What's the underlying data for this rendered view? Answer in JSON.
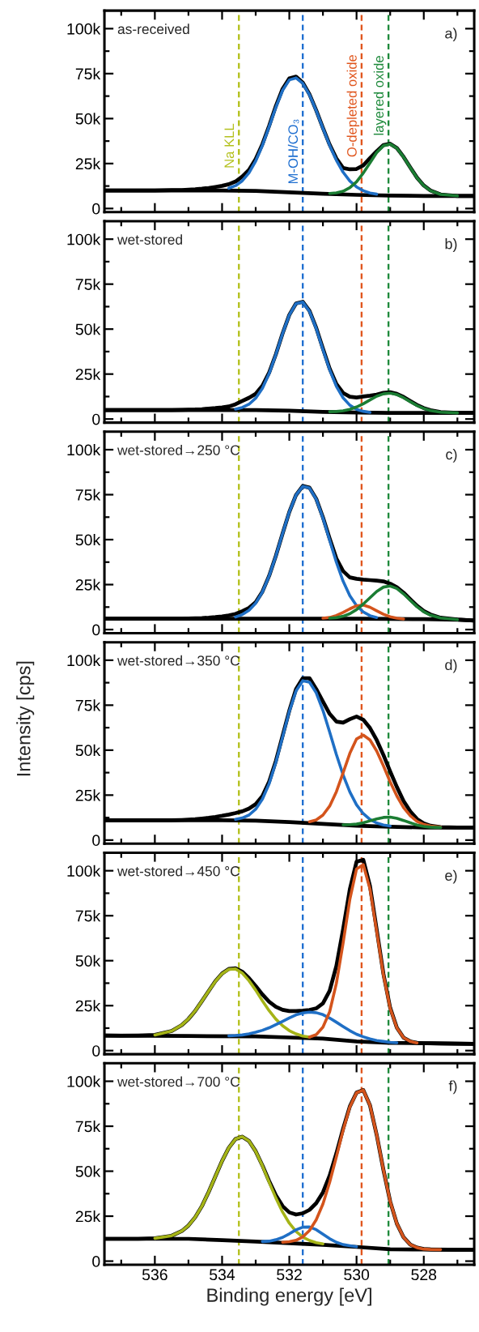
{
  "chart_data": [
    {
      "type": "line",
      "title": "as-received",
      "annotations": [
        "a)"
      ],
      "tick_labels": "y",
      "xlim": [
        537.5,
        526.5
      ],
      "ylim": [
        -2000,
        110000
      ],
      "xticks": [
        {
          "value": 537,
          "label": null
        },
        536,
        {
          "value": 535,
          "label": null
        },
        534,
        {
          "value": 533,
          "label": null
        },
        532,
        {
          "value": 531,
          "label": null
        },
        530,
        {
          "value": 529,
          "label": null
        },
        528,
        {
          "value": 527,
          "label": null
        }
      ],
      "yticks": [
        0,
        {
          "value": 12500,
          "label": null
        },
        {
          "value": 25000,
          "label": "25k"
        },
        {
          "value": 37500,
          "label": null
        },
        {
          "value": 50000,
          "label": "50k"
        },
        {
          "value": 62500,
          "label": null
        },
        {
          "value": 75000,
          "label": "75k"
        },
        {
          "value": 87500,
          "label": null
        },
        {
          "value": 100000,
          "label": "100k"
        }
      ],
      "ref_lines": [
        {
          "axis": "x",
          "value": 533.5,
          "label": "Na KLL",
          "color": "#b3c01c",
          "line_style": "dashed"
        },
        {
          "axis": "x",
          "value": 531.6,
          "label": "M-OH/CO₃",
          "color": "#1f6fd0",
          "line_style": "dashed"
        },
        {
          "axis": "x",
          "value": 529.85,
          "label": "O-depleted oxide",
          "color": "#e0561e",
          "line_style": "dashed"
        },
        {
          "axis": "x",
          "value": 529.05,
          "label": "layered oxide",
          "color": "#1f8a3c",
          "line_style": "dashed"
        }
      ],
      "x": [
        537.5,
        537,
        536.5,
        536,
        535.5,
        535.2,
        535.0,
        534.8,
        534.6,
        534.4,
        534.2,
        534.0,
        533.8,
        533.6,
        533.4,
        533.2,
        533.0,
        532.8,
        532.6,
        532.4,
        532.2,
        532.0,
        531.8,
        531.6,
        531.4,
        531.2,
        531.0,
        530.8,
        530.6,
        530.4,
        530.2,
        530.0,
        529.8,
        529.6,
        529.4,
        529.2,
        529.0,
        528.8,
        528.6,
        528.4,
        528.2,
        528.0,
        527.8,
        527.5,
        527,
        526.5
      ],
      "series": [
        {
          "type": "line",
          "color": "#000000",
          "values": [
            10000,
            10000,
            10000,
            10000,
            10200,
            10300,
            10500,
            10700,
            11000,
            11400,
            12000,
            12600,
            13500,
            15000,
            17800,
            21500,
            27500,
            35800,
            46000,
            57000,
            66500,
            72300,
            73300,
            70000,
            63500,
            54600,
            44800,
            35500,
            27800,
            22500,
            21800,
            22000,
            24000,
            28000,
            31800,
            35300,
            36000,
            33600,
            28700,
            22800,
            17100,
            12800,
            10000,
            7800,
            7000,
            7000
          ]
        },
        {
          "type": "line",
          "color": "#000000",
          "x": [
            537.5,
            534,
            533,
            532,
            531,
            530,
            529,
            528,
            526.5
          ],
          "values": [
            10000,
            10000,
            9800,
            9000,
            8200,
            7600,
            7200,
            7000,
            7000
          ]
        },
        {
          "type": "line",
          "color": "#1f6fc5",
          "x": [
            533.8,
            533.6,
            533.4,
            533.2,
            533.0,
            532.8,
            532.6,
            532.4,
            532.2,
            532.0,
            531.8,
            531.6,
            531.4,
            531.2,
            531.0,
            530.8,
            530.6,
            530.4,
            530.2,
            530.0,
            529.8,
            529.6,
            529.4
          ],
          "values": [
            11300,
            12700,
            15400,
            19800,
            26400,
            35100,
            45500,
            56300,
            65700,
            71500,
            72600,
            69600,
            63200,
            54400,
            44600,
            35100,
            26800,
            20200,
            15300,
            12000,
            9900,
            8600,
            8000
          ]
        },
        {
          "type": "line",
          "color": "#1b7d33",
          "x": [
            530.8,
            530.6,
            530.4,
            530.2,
            530.0,
            529.8,
            529.6,
            529.4,
            529.2,
            529.0,
            528.8,
            528.6,
            528.4,
            528.2,
            528.0,
            527.8,
            527.5,
            527.0
          ],
          "values": [
            8400,
            8700,
            9600,
            11600,
            14900,
            19700,
            25400,
            31100,
            34900,
            35800,
            33500,
            28600,
            22700,
            17000,
            12700,
            9900,
            7800,
            7000
          ]
        }
      ]
    },
    {
      "type": "line",
      "title": "wet-stored",
      "annotations": [
        "b)"
      ],
      "tick_labels": "y",
      "xlim": [
        537.5,
        526.5
      ],
      "ylim": [
        -2000,
        110000
      ],
      "xticks": [
        {
          "value": 537,
          "label": null
        },
        536,
        {
          "value": 535,
          "label": null
        },
        534,
        {
          "value": 533,
          "label": null
        },
        532,
        {
          "value": 531,
          "label": null
        },
        530,
        {
          "value": 529,
          "label": null
        },
        528,
        {
          "value": 527,
          "label": null
        }
      ],
      "yticks": [
        0,
        {
          "value": 12500,
          "label": null
        },
        {
          "value": 25000,
          "label": "25k"
        },
        {
          "value": 37500,
          "label": null
        },
        {
          "value": 50000,
          "label": "50k"
        },
        {
          "value": 62500,
          "label": null
        },
        {
          "value": 75000,
          "label": "75k"
        },
        {
          "value": 87500,
          "label": null
        },
        {
          "value": 100000,
          "label": "100k"
        }
      ],
      "ref_lines": [
        {
          "axis": "x",
          "value": 533.5,
          "color": "#b3c01c",
          "line_style": "dashed"
        },
        {
          "axis": "x",
          "value": 531.6,
          "color": "#1f6fd0",
          "line_style": "dashed"
        },
        {
          "axis": "x",
          "value": 529.85,
          "color": "#e0561e",
          "line_style": "dashed"
        },
        {
          "axis": "x",
          "value": 529.05,
          "color": "#1f8a3c",
          "line_style": "dashed"
        }
      ],
      "x": [
        537.5,
        537,
        536.5,
        536,
        535.5,
        535.2,
        535.0,
        534.8,
        534.6,
        534.4,
        534.2,
        534.0,
        533.8,
        533.6,
        533.4,
        533.2,
        533.0,
        532.8,
        532.6,
        532.4,
        532.2,
        532.0,
        531.8,
        531.6,
        531.4,
        531.2,
        531.0,
        530.8,
        530.6,
        530.4,
        530.2,
        530.0,
        529.8,
        529.6,
        529.4,
        529.2,
        529.0,
        528.8,
        528.6,
        528.4,
        528.2,
        528.0,
        527.8,
        527.5,
        527,
        526.5
      ],
      "series": [
        {
          "type": "line",
          "color": "#000000",
          "values": [
            5000,
            5000,
            5000,
            5000,
            5000,
            5100,
            5200,
            5300,
            5500,
            5800,
            6100,
            6500,
            7000,
            8200,
            10000,
            11800,
            14000,
            18500,
            25800,
            36000,
            47600,
            57900,
            64300,
            65200,
            60200,
            50700,
            39200,
            28000,
            19500,
            14500,
            12400,
            12000,
            12500,
            13000,
            13600,
            14600,
            14900,
            14000,
            12300,
            10000,
            7800,
            6100,
            4900,
            3900,
            3400,
            3400
          ]
        },
        {
          "type": "line",
          "color": "#000000",
          "x": [
            537.5,
            533,
            532,
            531,
            530,
            529,
            526.5
          ],
          "values": [
            5000,
            5000,
            4600,
            4000,
            3600,
            3400,
            3400
          ]
        },
        {
          "type": "line",
          "color": "#1f6fc5",
          "x": [
            533.6,
            533.4,
            533.2,
            533.0,
            532.8,
            532.6,
            532.4,
            532.2,
            532.0,
            531.8,
            531.6,
            531.4,
            531.2,
            531.0,
            530.8,
            530.6,
            530.4,
            530.2,
            530.0,
            529.8,
            529.6
          ],
          "values": [
            5500,
            6400,
            8200,
            11600,
            17100,
            25300,
            35900,
            47500,
            57800,
            64200,
            65000,
            59900,
            50300,
            38600,
            27400,
            18200,
            11800,
            7700,
            5400,
            4300,
            3700
          ]
        },
        {
          "type": "line",
          "color": "#1b7d33",
          "x": [
            530.8,
            530.6,
            530.4,
            530.2,
            530.0,
            529.8,
            529.6,
            529.4,
            529.2,
            529.0,
            528.8,
            528.6,
            528.4,
            528.2,
            528.0,
            527.8,
            527.5,
            527.0
          ],
          "values": [
            4100,
            4200,
            4600,
            5400,
            6700,
            8500,
            10600,
            12700,
            14000,
            14400,
            13600,
            11800,
            9600,
            7500,
            5900,
            4700,
            3800,
            3400
          ]
        }
      ]
    },
    {
      "type": "line",
      "title": "wet-stored→250 °C",
      "annotations": [
        "c)"
      ],
      "tick_labels": "y",
      "xlim": [
        537.5,
        526.5
      ],
      "ylim": [
        -2000,
        110000
      ],
      "xticks": [
        {
          "value": 537,
          "label": null
        },
        536,
        {
          "value": 535,
          "label": null
        },
        534,
        {
          "value": 533,
          "label": null
        },
        532,
        {
          "value": 531,
          "label": null
        },
        530,
        {
          "value": 529,
          "label": null
        },
        528,
        {
          "value": 527,
          "label": null
        }
      ],
      "yticks": [
        0,
        {
          "value": 12500,
          "label": null
        },
        {
          "value": 25000,
          "label": "25k"
        },
        {
          "value": 37500,
          "label": null
        },
        {
          "value": 50000,
          "label": "50k"
        },
        {
          "value": 62500,
          "label": null
        },
        {
          "value": 75000,
          "label": "75k"
        },
        {
          "value": 87500,
          "label": null
        },
        {
          "value": 100000,
          "label": "100k"
        }
      ],
      "ref_lines": [
        {
          "axis": "x",
          "value": 533.5,
          "color": "#b3c01c",
          "line_style": "dashed"
        },
        {
          "axis": "x",
          "value": 531.6,
          "color": "#1f6fd0",
          "line_style": "dashed"
        },
        {
          "axis": "x",
          "value": 529.85,
          "color": "#e0561e",
          "line_style": "dashed"
        },
        {
          "axis": "x",
          "value": 529.05,
          "color": "#1f8a3c",
          "line_style": "dashed"
        }
      ],
      "x": [
        537.5,
        537,
        536.5,
        536,
        535.5,
        535.2,
        535.0,
        534.8,
        534.6,
        534.4,
        534.2,
        534.0,
        533.8,
        533.6,
        533.4,
        533.2,
        533.0,
        532.8,
        532.6,
        532.4,
        532.2,
        532.0,
        531.8,
        531.6,
        531.4,
        531.2,
        531.0,
        530.8,
        530.6,
        530.4,
        530.2,
        530.0,
        529.8,
        529.6,
        529.4,
        529.2,
        529.0,
        528.8,
        528.6,
        528.4,
        528.2,
        528.0,
        527.8,
        527.5,
        527,
        526.5
      ],
      "series": [
        {
          "type": "line",
          "color": "#000000",
          "values": [
            6000,
            6000,
            6000,
            6000,
            6000,
            6100,
            6200,
            6300,
            6400,
            6600,
            6900,
            7300,
            7900,
            8700,
            10200,
            12000,
            15200,
            21100,
            29900,
            41000,
            53400,
            65400,
            74800,
            79800,
            78900,
            72700,
            62400,
            50600,
            39500,
            32500,
            29000,
            28200,
            27800,
            27500,
            27200,
            26800,
            25500,
            23500,
            20500,
            16800,
            13200,
            10300,
            8400,
            6600,
            5600,
            5000
          ]
        },
        {
          "type": "line",
          "color": "#000000",
          "x": [
            537.5,
            530,
            529,
            528,
            527,
            526.5
          ],
          "values": [
            6000,
            6000,
            5900,
            5800,
            5500,
            5000
          ]
        },
        {
          "type": "line",
          "color": "#1f6fc5",
          "x": [
            533.6,
            533.4,
            533.2,
            533.0,
            532.8,
            532.6,
            532.4,
            532.2,
            532.0,
            531.8,
            531.6,
            531.4,
            531.2,
            531.0,
            530.8,
            530.6,
            530.4,
            530.2,
            530.0,
            529.8,
            529.6,
            529.4
          ],
          "values": [
            7000,
            8300,
            10700,
            14700,
            20900,
            29800,
            40900,
            53400,
            65400,
            74800,
            79600,
            78700,
            72500,
            62000,
            49700,
            37400,
            26900,
            18800,
            13300,
            9800,
            7700,
            6700
          ]
        },
        {
          "type": "line",
          "color": "#d4541c",
          "x": [
            531.0,
            530.8,
            530.6,
            530.4,
            530.2,
            530.0,
            529.8,
            529.6,
            529.4,
            529.2,
            529.0,
            528.8,
            528.6
          ],
          "values": [
            6300,
            6700,
            7800,
            9500,
            11500,
            13200,
            13600,
            12400,
            10400,
            8500,
            7100,
            6300,
            5900
          ]
        },
        {
          "type": "line",
          "color": "#1b7d33",
          "x": [
            530.8,
            530.6,
            530.4,
            530.2,
            530.0,
            529.8,
            529.6,
            529.4,
            529.2,
            529.0,
            528.8,
            528.6,
            528.4,
            528.2,
            528.0,
            527.8,
            527.5,
            527.0
          ],
          "values": [
            6300,
            6600,
            7400,
            8800,
            11100,
            14200,
            17700,
            21200,
            23600,
            24200,
            22800,
            19800,
            16200,
            12700,
            9900,
            8000,
            6400,
            5500
          ]
        }
      ]
    },
    {
      "type": "line",
      "title": "wet-stored→350 °C",
      "annotations": [
        "d)"
      ],
      "ylabel": "Intensity [cps]",
      "tick_labels": "y",
      "xlim": [
        537.5,
        526.5
      ],
      "ylim": [
        -2000,
        110000
      ],
      "xticks": [
        {
          "value": 537,
          "label": null
        },
        536,
        {
          "value": 535,
          "label": null
        },
        534,
        {
          "value": 533,
          "label": null
        },
        532,
        {
          "value": 531,
          "label": null
        },
        530,
        {
          "value": 529,
          "label": null
        },
        528,
        {
          "value": 527,
          "label": null
        }
      ],
      "yticks": [
        0,
        {
          "value": 12500,
          "label": null
        },
        {
          "value": 25000,
          "label": "25k"
        },
        {
          "value": 37500,
          "label": null
        },
        {
          "value": 50000,
          "label": "50k"
        },
        {
          "value": 62500,
          "label": null
        },
        {
          "value": 75000,
          "label": "75k"
        },
        {
          "value": 87500,
          "label": null
        },
        {
          "value": 100000,
          "label": "100k"
        }
      ],
      "ref_lines": [
        {
          "axis": "x",
          "value": 533.5,
          "color": "#b3c01c",
          "line_style": "dashed"
        },
        {
          "axis": "x",
          "value": 531.6,
          "color": "#1f6fd0",
          "line_style": "dashed"
        },
        {
          "axis": "x",
          "value": 529.85,
          "color": "#e0561e",
          "line_style": "dashed"
        },
        {
          "axis": "x",
          "value": 529.05,
          "color": "#1f8a3c",
          "line_style": "dashed"
        }
      ],
      "x": [
        537.5,
        537,
        536.5,
        536,
        535.5,
        535.2,
        535.0,
        534.8,
        534.6,
        534.4,
        534.2,
        534.0,
        533.8,
        533.6,
        533.4,
        533.2,
        533.0,
        532.8,
        532.6,
        532.4,
        532.2,
        532.0,
        531.8,
        531.6,
        531.4,
        531.2,
        531.0,
        530.8,
        530.6,
        530.4,
        530.2,
        530.0,
        529.8,
        529.6,
        529.4,
        529.2,
        529.0,
        528.8,
        528.6,
        528.4,
        528.2,
        528.0,
        527.8,
        527.5,
        527,
        526.5
      ],
      "series": [
        {
          "type": "line",
          "color": "#000000",
          "values": [
            11000,
            11000,
            11000,
            11000,
            11000,
            11200,
            11400,
            11600,
            12000,
            12400,
            12900,
            13500,
            14200,
            15000,
            16000,
            17500,
            20000,
            24500,
            32500,
            44000,
            58000,
            72000,
            84000,
            90000,
            90000,
            84000,
            77000,
            70200,
            65900,
            65300,
            67200,
            68700,
            66900,
            62300,
            55600,
            47300,
            38200,
            29500,
            21700,
            15900,
            11700,
            9300,
            8000,
            7200,
            7000,
            7000
          ]
        },
        {
          "type": "line",
          "color": "#000000",
          "x": [
            537.5,
            534,
            533,
            532,
            531,
            530,
            529,
            528,
            526.5
          ],
          "values": [
            11000,
            11000,
            10800,
            10000,
            9000,
            8000,
            7400,
            7000,
            7000
          ]
        },
        {
          "type": "line",
          "color": "#1f6fc5",
          "x": [
            533.6,
            533.4,
            533.2,
            533.0,
            532.8,
            532.6,
            532.4,
            532.2,
            532.0,
            531.8,
            531.6,
            531.4,
            531.2,
            531.0,
            530.8,
            530.6,
            530.4,
            530.2,
            530.0,
            529.8,
            529.6,
            529.4,
            529.2,
            529.0
          ],
          "values": [
            11500,
            12300,
            13900,
            17200,
            22800,
            31400,
            43200,
            57300,
            71500,
            82900,
            88600,
            87800,
            81900,
            72100,
            60100,
            47600,
            36200,
            26800,
            19600,
            14700,
            11500,
            9500,
            8400,
            7800
          ]
        },
        {
          "type": "line",
          "color": "#d4541c",
          "x": [
            531.4,
            531.2,
            531.0,
            530.8,
            530.6,
            530.4,
            530.2,
            530.0,
            529.8,
            529.6,
            529.4,
            529.2,
            529.0,
            528.8,
            528.6,
            528.4,
            528.2,
            528.0,
            527.8,
            527.5
          ],
          "values": [
            10200,
            11200,
            13900,
            18900,
            26900,
            37400,
            48200,
            56200,
            58400,
            55700,
            49500,
            41300,
            32400,
            24500,
            18000,
            13500,
            10400,
            8700,
            7800,
            7200
          ]
        },
        {
          "type": "line",
          "color": "#1b7d33",
          "x": [
            530.4,
            530.2,
            530.0,
            529.8,
            529.6,
            529.4,
            529.2,
            529.0,
            528.8,
            528.6,
            528.4,
            528.2,
            528.0,
            527.8,
            527.5
          ],
          "values": [
            8500,
            8600,
            8900,
            9600,
            10700,
            11800,
            12600,
            12800,
            12100,
            10900,
            9600,
            8400,
            7600,
            7200,
            7000
          ]
        }
      ]
    },
    {
      "type": "line",
      "title": "wet-stored→450 °C",
      "annotations": [
        "e)"
      ],
      "tick_labels": "y",
      "xlim": [
        537.5,
        526.5
      ],
      "ylim": [
        -2000,
        110000
      ],
      "xticks": [
        {
          "value": 537,
          "label": null
        },
        536,
        {
          "value": 535,
          "label": null
        },
        534,
        {
          "value": 533,
          "label": null
        },
        532,
        {
          "value": 531,
          "label": null
        },
        530,
        {
          "value": 529,
          "label": null
        },
        528,
        {
          "value": 527,
          "label": null
        }
      ],
      "yticks": [
        0,
        {
          "value": 12500,
          "label": null
        },
        {
          "value": 25000,
          "label": "25k"
        },
        {
          "value": 37500,
          "label": null
        },
        {
          "value": 50000,
          "label": "50k"
        },
        {
          "value": 62500,
          "label": null
        },
        {
          "value": 75000,
          "label": "75k"
        },
        {
          "value": 87500,
          "label": null
        },
        {
          "value": 100000,
          "label": "100k"
        }
      ],
      "ref_lines": [
        {
          "axis": "x",
          "value": 533.5,
          "color": "#b3c01c",
          "line_style": "dashed"
        },
        {
          "axis": "x",
          "value": 531.6,
          "color": "#1f6fd0",
          "line_style": "dashed"
        },
        {
          "axis": "x",
          "value": 529.85,
          "color": "#e0561e",
          "line_style": "dashed"
        },
        {
          "axis": "x",
          "value": 529.05,
          "color": "#1f8a3c",
          "line_style": "dashed"
        }
      ],
      "x": [
        537.5,
        537,
        536.5,
        536,
        535.5,
        535.2,
        535.0,
        534.8,
        534.6,
        534.4,
        534.2,
        534.0,
        533.8,
        533.6,
        533.4,
        533.2,
        533.0,
        532.8,
        532.6,
        532.4,
        532.2,
        532.0,
        531.8,
        531.6,
        531.4,
        531.2,
        531.0,
        530.8,
        530.6,
        530.4,
        530.2,
        530.0,
        529.8,
        529.6,
        529.4,
        529.2,
        529.0,
        528.8,
        528.6,
        528.4,
        528.2,
        528.0,
        527.8,
        527.5,
        527,
        526.5
      ],
      "series": [
        {
          "type": "line",
          "color": "#000000",
          "values": [
            8400,
            8300,
            8400,
            8700,
            10900,
            14200,
            17600,
            22100,
            27500,
            33100,
            38600,
            42900,
            45400,
            45800,
            43900,
            40300,
            35900,
            31200,
            27200,
            24400,
            22700,
            22000,
            22000,
            22200,
            22600,
            23500,
            26300,
            33300,
            47100,
            67500,
            89700,
            105000,
            106100,
            91500,
            67200,
            42600,
            23800,
            12700,
            7200,
            5100,
            4300,
            4100,
            4100,
            4000,
            3900,
            3800
          ]
        },
        {
          "type": "line",
          "color": "#000000",
          "x": [
            537.5,
            535,
            533,
            532,
            531,
            530,
            529,
            527,
            526.5
          ],
          "values": [
            8400,
            8100,
            7900,
            7300,
            6700,
            5100,
            4300,
            3900,
            3800
          ]
        },
        {
          "type": "line",
          "color": "#a5b417",
          "x": [
            536.0,
            535.5,
            535.2,
            535.0,
            534.8,
            534.6,
            534.4,
            534.2,
            534.0,
            533.8,
            533.6,
            533.4,
            533.2,
            533.0,
            532.8,
            532.6,
            532.4,
            532.2,
            532.0,
            531.8,
            531.6,
            531.4
          ],
          "values": [
            8700,
            10900,
            14200,
            17600,
            22100,
            27500,
            33100,
            38500,
            42800,
            45200,
            45400,
            43100,
            38900,
            33600,
            27700,
            22200,
            17500,
            13800,
            11100,
            9300,
            8100,
            7500
          ]
        },
        {
          "type": "line",
          "color": "#1f6fc5",
          "x": [
            533.8,
            533.6,
            533.4,
            533.2,
            533.0,
            532.8,
            532.6,
            532.4,
            532.2,
            532.0,
            531.8,
            531.6,
            531.4,
            531.2,
            531.0,
            530.8,
            530.6,
            530.4,
            530.2,
            530.0,
            529.8,
            529.6,
            529.4,
            529.2,
            529.0,
            528.8
          ],
          "values": [
            8200,
            8400,
            8700,
            9300,
            10200,
            11300,
            12700,
            14500,
            16300,
            18200,
            19900,
            20900,
            21400,
            21100,
            20000,
            18100,
            15800,
            13400,
            11100,
            9100,
            7700,
            6500,
            5600,
            5100,
            4600,
            4400
          ]
        },
        {
          "type": "line",
          "color": "#d4541c",
          "x": [
            531.4,
            531.2,
            531.0,
            530.8,
            530.6,
            530.4,
            530.2,
            530.0,
            529.8,
            529.6,
            529.4,
            529.2,
            529.0,
            528.8,
            528.6,
            528.4,
            528.2
          ],
          "values": [
            7500,
            8900,
            13000,
            21600,
            37400,
            59800,
            84000,
            101000,
            103400,
            89800,
            66200,
            42000,
            23500,
            12600,
            7200,
            5100,
            4300
          ]
        }
      ]
    },
    {
      "type": "line",
      "title": "wet-stored→700 °C",
      "annotations": [
        "f)"
      ],
      "xlabel": "Binding energy [eV]",
      "xlim": [
        537.5,
        526.5
      ],
      "ylim": [
        -2000,
        110000
      ],
      "xticks": [
        {
          "value": 537,
          "label": null
        },
        536,
        {
          "value": 535,
          "label": null
        },
        534,
        {
          "value": 533,
          "label": null
        },
        532,
        {
          "value": 531,
          "label": null
        },
        530,
        {
          "value": 529,
          "label": null
        },
        528,
        {
          "value": 527,
          "label": null
        }
      ],
      "yticks": [
        0,
        {
          "value": 12500,
          "label": null
        },
        {
          "value": 25000,
          "label": "25k"
        },
        {
          "value": 37500,
          "label": null
        },
        {
          "value": 50000,
          "label": "50k"
        },
        {
          "value": 62500,
          "label": null
        },
        {
          "value": 75000,
          "label": "75k"
        },
        {
          "value": 87500,
          "label": null
        },
        {
          "value": 100000,
          "label": "100k"
        }
      ],
      "ref_lines": [
        {
          "axis": "x",
          "value": 533.5,
          "color": "#b3c01c",
          "line_style": "dashed"
        },
        {
          "axis": "x",
          "value": 531.6,
          "color": "#1f6fd0",
          "line_style": "dashed"
        },
        {
          "axis": "x",
          "value": 529.85,
          "color": "#e0561e",
          "line_style": "dashed"
        },
        {
          "axis": "x",
          "value": 529.05,
          "color": "#1f8a3c",
          "line_style": "dashed"
        }
      ],
      "x": [
        537.5,
        537,
        536.5,
        536,
        535.5,
        535.2,
        535.0,
        534.8,
        534.6,
        534.4,
        534.2,
        534.0,
        533.8,
        533.6,
        533.4,
        533.2,
        533.0,
        532.8,
        532.6,
        532.4,
        532.2,
        532.0,
        531.8,
        531.6,
        531.4,
        531.2,
        531.0,
        530.8,
        530.6,
        530.4,
        530.2,
        530.0,
        529.8,
        529.6,
        529.4,
        529.2,
        529.0,
        528.8,
        528.6,
        528.4,
        528.2,
        528.0,
        527.8,
        527.5,
        527,
        526.5
      ],
      "series": [
        {
          "type": "line",
          "color": "#000000",
          "values": [
            12400,
            12400,
            12400,
            12700,
            14100,
            16700,
            19800,
            24400,
            30600,
            38400,
            47100,
            55700,
            63000,
            67900,
            69200,
            66800,
            61100,
            53200,
            44500,
            36600,
            30600,
            27100,
            25900,
            26600,
            28500,
            32200,
            38200,
            47600,
            59900,
            73600,
            86000,
            93700,
            95100,
            86600,
            70100,
            50700,
            33200,
            20800,
            13200,
            9200,
            7500,
            6700,
            6500,
            6400,
            6300,
            6300
          ]
        },
        {
          "type": "line",
          "color": "#000000",
          "x": [
            537.5,
            535,
            534,
            533,
            532,
            531,
            530,
            529,
            528,
            526.5
          ],
          "values": [
            12400,
            12400,
            11700,
            10900,
            10000,
            9100,
            7900,
            6600,
            6500,
            6300
          ]
        },
        {
          "type": "line",
          "color": "#a5b417",
          "x": [
            536.0,
            535.5,
            535.2,
            535.0,
            534.8,
            534.6,
            534.4,
            534.2,
            534.0,
            533.8,
            533.6,
            533.4,
            533.2,
            533.0,
            532.8,
            532.6,
            532.4,
            532.2,
            532.0,
            531.8,
            531.6,
            531.4,
            531.2,
            531.0
          ],
          "values": [
            12700,
            14100,
            16700,
            19800,
            24400,
            30600,
            38400,
            47100,
            55700,
            63000,
            67900,
            69200,
            66800,
            61100,
            53000,
            43900,
            35100,
            27300,
            21100,
            16500,
            13400,
            11500,
            10300,
            9600
          ]
        },
        {
          "type": "line",
          "color": "#1f6fc5",
          "x": [
            532.8,
            532.6,
            532.4,
            532.2,
            532.0,
            531.8,
            531.6,
            531.4,
            531.2,
            531.0,
            530.8,
            530.6,
            530.4,
            530.2,
            530.0
          ],
          "values": [
            10900,
            11100,
            11900,
            13200,
            15200,
            17400,
            18900,
            19000,
            17500,
            15000,
            12500,
            10500,
            9200,
            8600,
            8000
          ]
        },
        {
          "type": "line",
          "color": "#d4541c",
          "x": [
            532.2,
            532.0,
            531.8,
            531.6,
            531.4,
            531.2,
            531.0,
            530.8,
            530.6,
            530.4,
            530.2,
            530.0,
            529.8,
            529.6,
            529.4,
            529.2,
            529.0,
            528.8,
            528.6,
            528.4,
            528.2,
            528.0,
            527.8,
            527.5
          ],
          "values": [
            10500,
            10800,
            11600,
            13500,
            17000,
            23000,
            31800,
            43800,
            58000,
            72800,
            85700,
            93600,
            95100,
            86600,
            70100,
            50700,
            33200,
            20800,
            13200,
            9200,
            7500,
            6700,
            6500,
            6400
          ]
        }
      ]
    }
  ]
}
